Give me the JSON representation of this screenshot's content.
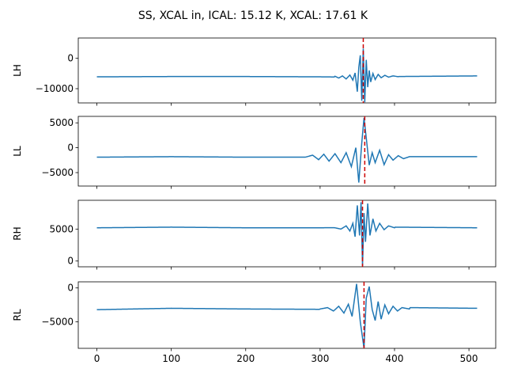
{
  "figure": {
    "title": "SS, XCAL in, ICAL: 15.12 K, XCAL: 17.61 K"
  },
  "chart_data": [
    {
      "type": "line",
      "ylabel": "LH",
      "xlim": [
        -25,
        536
      ],
      "ylim": [
        -14700,
        6700
      ],
      "yticks": [
        0,
        -10000
      ],
      "xticks": [
        0,
        100,
        200,
        300,
        400,
        500
      ],
      "show_xtick_labels": false,
      "vline": {
        "x": 358,
        "color": "#cc0000",
        "style": "dashed"
      },
      "series": [
        {
          "color": "#1f77b4",
          "baseline_points": [
            [
              0,
              -6100
            ],
            [
              100,
              -6000
            ],
            [
              200,
              -6000
            ],
            [
              300,
              -6100
            ],
            [
              340,
              -6200
            ],
            [
              400,
              -6000
            ],
            [
              511,
              -5800
            ]
          ],
          "burst_points": [
            [
              320,
              -5900
            ],
            [
              325,
              -6500
            ],
            [
              330,
              -5800
            ],
            [
              335,
              -6800
            ],
            [
              340,
              -5500
            ],
            [
              344,
              -7200
            ],
            [
              347,
              -4800
            ],
            [
              350,
              -11000
            ],
            [
              352,
              -3000
            ],
            [
              354,
              1000
            ],
            [
              356,
              -14000
            ],
            [
              358,
              3200
            ],
            [
              360,
              -14500
            ],
            [
              362,
              -500
            ],
            [
              364,
              -9500
            ],
            [
              366,
              -4000
            ],
            [
              368,
              -7800
            ],
            [
              371,
              -5000
            ],
            [
              374,
              -7000
            ],
            [
              378,
              -5300
            ],
            [
              382,
              -6400
            ],
            [
              387,
              -5600
            ],
            [
              392,
              -6200
            ],
            [
              398,
              -5800
            ],
            [
              405,
              -6050
            ]
          ]
        }
      ]
    },
    {
      "type": "line",
      "ylabel": "LL",
      "xlim": [
        -25,
        536
      ],
      "ylim": [
        -7700,
        6300
      ],
      "yticks": [
        5000,
        0,
        -5000
      ],
      "xticks": [
        0,
        100,
        200,
        300,
        400,
        500
      ],
      "show_xtick_labels": false,
      "vline": {
        "x": 360,
        "color": "#cc0000",
        "style": "dashed"
      },
      "series": [
        {
          "color": "#1f77b4",
          "baseline_points": [
            [
              0,
              -1900
            ],
            [
              100,
              -1800
            ],
            [
              200,
              -1900
            ],
            [
              280,
              -1900
            ],
            [
              420,
              -1800
            ],
            [
              511,
              -1800
            ]
          ],
          "burst_points": [
            [
              280,
              -1900
            ],
            [
              290,
              -1500
            ],
            [
              298,
              -2400
            ],
            [
              305,
              -1300
            ],
            [
              312,
              -2700
            ],
            [
              320,
              -1200
            ],
            [
              328,
              -3000
            ],
            [
              335,
              -1000
            ],
            [
              342,
              -3800
            ],
            [
              348,
              0
            ],
            [
              352,
              -7000
            ],
            [
              356,
              1000
            ],
            [
              359,
              6000
            ],
            [
              362,
              2000
            ],
            [
              366,
              -3500
            ],
            [
              370,
              -1000
            ],
            [
              374,
              -3000
            ],
            [
              380,
              -500
            ],
            [
              386,
              -3400
            ],
            [
              392,
              -1400
            ],
            [
              398,
              -2500
            ],
            [
              405,
              -1600
            ],
            [
              412,
              -2200
            ],
            [
              420,
              -1800
            ]
          ]
        }
      ]
    },
    {
      "type": "line",
      "ylabel": "RH",
      "xlim": [
        -25,
        536
      ],
      "ylim": [
        -900,
        9500
      ],
      "yticks": [
        5000,
        0
      ],
      "xticks": [
        0,
        100,
        200,
        300,
        400,
        500
      ],
      "show_xtick_labels": false,
      "vline": {
        "x": 357,
        "color": "#cc0000",
        "style": "dashed"
      },
      "series": [
        {
          "color": "#1f77b4",
          "baseline_points": [
            [
              0,
              5200
            ],
            [
              100,
              5300
            ],
            [
              200,
              5200
            ],
            [
              300,
              5200
            ],
            [
              400,
              5300
            ],
            [
              511,
              5200
            ]
          ],
          "burst_points": [
            [
              320,
              5200
            ],
            [
              328,
              5000
            ],
            [
              335,
              5500
            ],
            [
              340,
              4700
            ],
            [
              344,
              5900
            ],
            [
              347,
              3800
            ],
            [
              350,
              8700
            ],
            [
              353,
              4000
            ],
            [
              355,
              9200
            ],
            [
              357,
              -800
            ],
            [
              359,
              7500
            ],
            [
              361,
              3000
            ],
            [
              364,
              9000
            ],
            [
              367,
              4000
            ],
            [
              371,
              6600
            ],
            [
              375,
              4700
            ],
            [
              380,
              5900
            ],
            [
              386,
              4900
            ],
            [
              392,
              5500
            ],
            [
              400,
              5200
            ]
          ]
        }
      ]
    },
    {
      "type": "line",
      "ylabel": "RL",
      "xlim": [
        -25,
        536
      ],
      "ylim": [
        -8900,
        900
      ],
      "yticks": [
        0,
        -5000
      ],
      "xticks": [
        0,
        100,
        200,
        300,
        400,
        500
      ],
      "show_xtick_labels": true,
      "vline": {
        "x": 359,
        "color": "#cc0000",
        "style": "dashed"
      },
      "series": [
        {
          "color": "#1f77b4",
          "baseline_points": [
            [
              0,
              -3200
            ],
            [
              100,
              -3000
            ],
            [
              200,
              -3100
            ],
            [
              300,
              -3150
            ],
            [
              420,
              -2900
            ],
            [
              511,
              -3000
            ]
          ],
          "burst_points": [
            [
              300,
              -3100
            ],
            [
              310,
              -2900
            ],
            [
              318,
              -3400
            ],
            [
              325,
              -2700
            ],
            [
              332,
              -3700
            ],
            [
              338,
              -2400
            ],
            [
              343,
              -4200
            ],
            [
              349,
              600
            ],
            [
              354,
              -5000
            ],
            [
              359,
              -8900
            ],
            [
              362,
              -1500
            ],
            [
              366,
              200
            ],
            [
              370,
              -3200
            ],
            [
              374,
              -4800
            ],
            [
              378,
              -2000
            ],
            [
              382,
              -4600
            ],
            [
              387,
              -2500
            ],
            [
              392,
              -3800
            ],
            [
              398,
              -2700
            ],
            [
              404,
              -3400
            ],
            [
              410,
              -2900
            ],
            [
              420,
              -3100
            ]
          ]
        }
      ]
    }
  ]
}
